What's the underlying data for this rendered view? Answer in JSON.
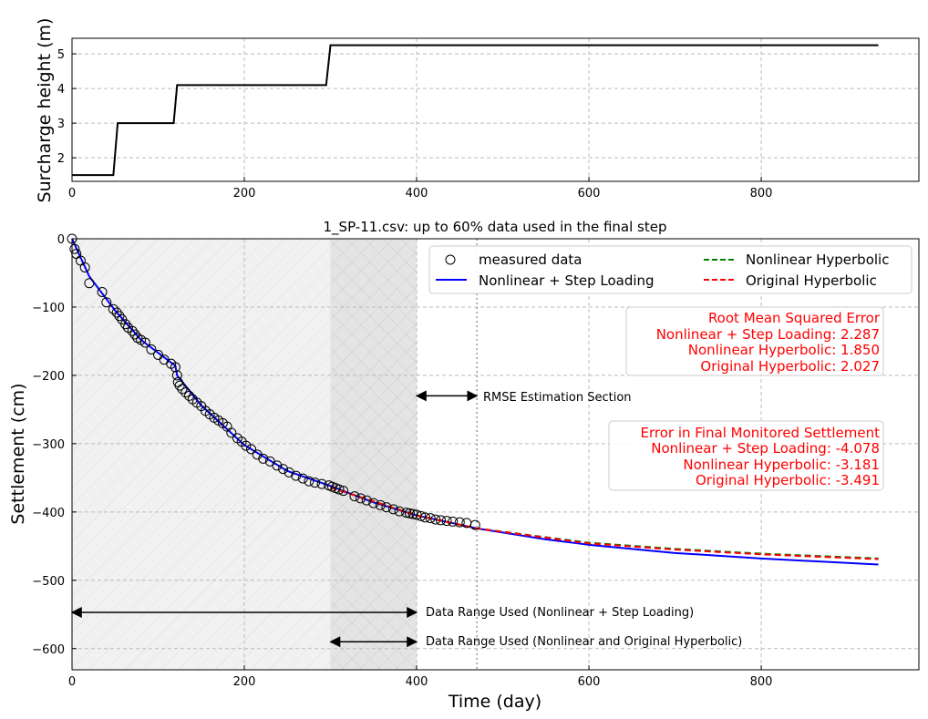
{
  "chart_data": [
    {
      "type": "line",
      "ylabel": "Surcharge height (m)",
      "xlim": [
        0,
        983
      ],
      "ylim": [
        1.32,
        5.45
      ],
      "xticks": [
        0,
        200,
        400,
        600,
        800
      ],
      "yticks": [
        2,
        3,
        4,
        5
      ],
      "grid": true,
      "series": [
        {
          "color": "#000000",
          "x": [
            0,
            48,
            53,
            118,
            122,
            295,
            300,
            936
          ],
          "y": [
            1.5,
            1.5,
            3.0,
            3.0,
            4.1,
            4.1,
            5.25,
            5.25
          ]
        }
      ]
    },
    {
      "type": "line",
      "title": "1_SP-11.csv: up to 60% data used in the final step",
      "xlabel": "Time (day)",
      "ylabel": "Settlement (cm)",
      "xlim": [
        0,
        983
      ],
      "ylim": [
        -631,
        0
      ],
      "xticks": [
        0,
        200,
        400,
        600,
        800
      ],
      "yticks": [
        0,
        -100,
        -200,
        -300,
        -400,
        -500,
        -600
      ],
      "grid": true,
      "legend": "top-right",
      "series": [
        {
          "name": "measured data",
          "type": "scatter",
          "color": "#000000",
          "x": [
            0,
            3,
            5,
            10,
            15,
            20,
            35,
            40,
            48,
            52,
            55,
            58,
            62,
            65,
            70,
            73,
            76,
            80,
            85,
            92,
            100,
            107,
            115,
            120,
            122,
            123,
            125,
            128,
            132,
            136,
            140,
            145,
            150,
            155,
            160,
            165,
            170,
            175,
            180,
            185,
            192,
            197,
            202,
            208,
            215,
            222,
            230,
            238,
            245,
            252,
            260,
            268,
            275,
            282,
            290,
            298,
            302,
            306,
            310,
            315,
            328,
            335,
            342,
            350,
            358,
            365,
            373,
            380,
            388,
            392,
            396,
            400,
            405,
            410,
            416,
            422,
            428,
            435,
            442,
            450,
            458,
            468
          ],
          "y": [
            0,
            -15,
            -22,
            -32,
            -42,
            -65,
            -78,
            -93,
            -103,
            -108,
            -113,
            -118,
            -125,
            -130,
            -135,
            -140,
            -145,
            -148,
            -152,
            -162,
            -170,
            -177,
            -183,
            -188,
            -200,
            -210,
            -215,
            -220,
            -225,
            -230,
            -235,
            -240,
            -245,
            -252,
            -257,
            -262,
            -266,
            -270,
            -275,
            -284,
            -292,
            -297,
            -303,
            -308,
            -316,
            -322,
            -326,
            -332,
            -337,
            -342,
            -347,
            -351,
            -355,
            -357,
            -359,
            -361,
            -363,
            -365,
            -367,
            -369,
            -377,
            -380,
            -383,
            -387,
            -390,
            -393,
            -396,
            -399,
            -401,
            -402,
            -403,
            -404,
            -406,
            -408,
            -409,
            -411,
            -412,
            -413,
            -414,
            -415,
            -416,
            -419
          ]
        },
        {
          "name": "Nonlinear + Step Loading",
          "color": "#0000ff",
          "x": [
            0,
            20,
            50,
            80,
            120,
            122,
            150,
            200,
            250,
            300,
            350,
            400,
            470,
            550,
            600,
            700,
            800,
            936
          ],
          "y": [
            0,
            -55,
            -105,
            -148,
            -186,
            -200,
            -244,
            -302,
            -340,
            -362,
            -386,
            -405,
            -424,
            -440,
            -448,
            -460,
            -468,
            -477
          ]
        },
        {
          "name": "Nonlinear Hyperbolic",
          "color": "#008000",
          "dashed": true,
          "x": [
            300,
            400,
            470,
            600,
            700,
            800,
            936
          ],
          "y": [
            -364,
            -405,
            -424,
            -445,
            -454,
            -461,
            -468
          ]
        },
        {
          "name": "Original Hyperbolic",
          "color": "#ff0000",
          "dashed": true,
          "x": [
            300,
            400,
            470,
            600,
            700,
            800,
            936
          ],
          "y": [
            -364,
            -405,
            -424,
            -446,
            -455,
            -462,
            -469
          ]
        }
      ],
      "regions": [
        {
          "x": [
            0,
            400
          ],
          "hatch": "/"
        },
        {
          "x": [
            300,
            400
          ],
          "hatch": "x"
        }
      ],
      "vline": 470,
      "annotations": {
        "rmse_section": {
          "text": "RMSE Estimation Section",
          "x": [
            400,
            470
          ],
          "y": -230
        },
        "range_step": {
          "text": "Data Range Used (Nonlinear + Step Loading)",
          "x": [
            0,
            400
          ],
          "y": -547
        },
        "range_hyp": {
          "text": "Data Range Used (Nonlinear and Original Hyperbolic)",
          "x": [
            300,
            400
          ],
          "y": -590
        }
      },
      "rmse_box": [
        "Root Mean Squared Error",
        "Nonlinear + Step Loading: 2.287",
        "Nonlinear Hyperbolic: 1.850",
        "Original Hyperbolic: 2.027"
      ],
      "error_box": [
        "Error in Final Monitored Settlement",
        "Nonlinear + Step Loading: -4.078",
        "Nonlinear Hyperbolic: -3.181",
        "Original Hyperbolic: -3.491"
      ]
    }
  ]
}
